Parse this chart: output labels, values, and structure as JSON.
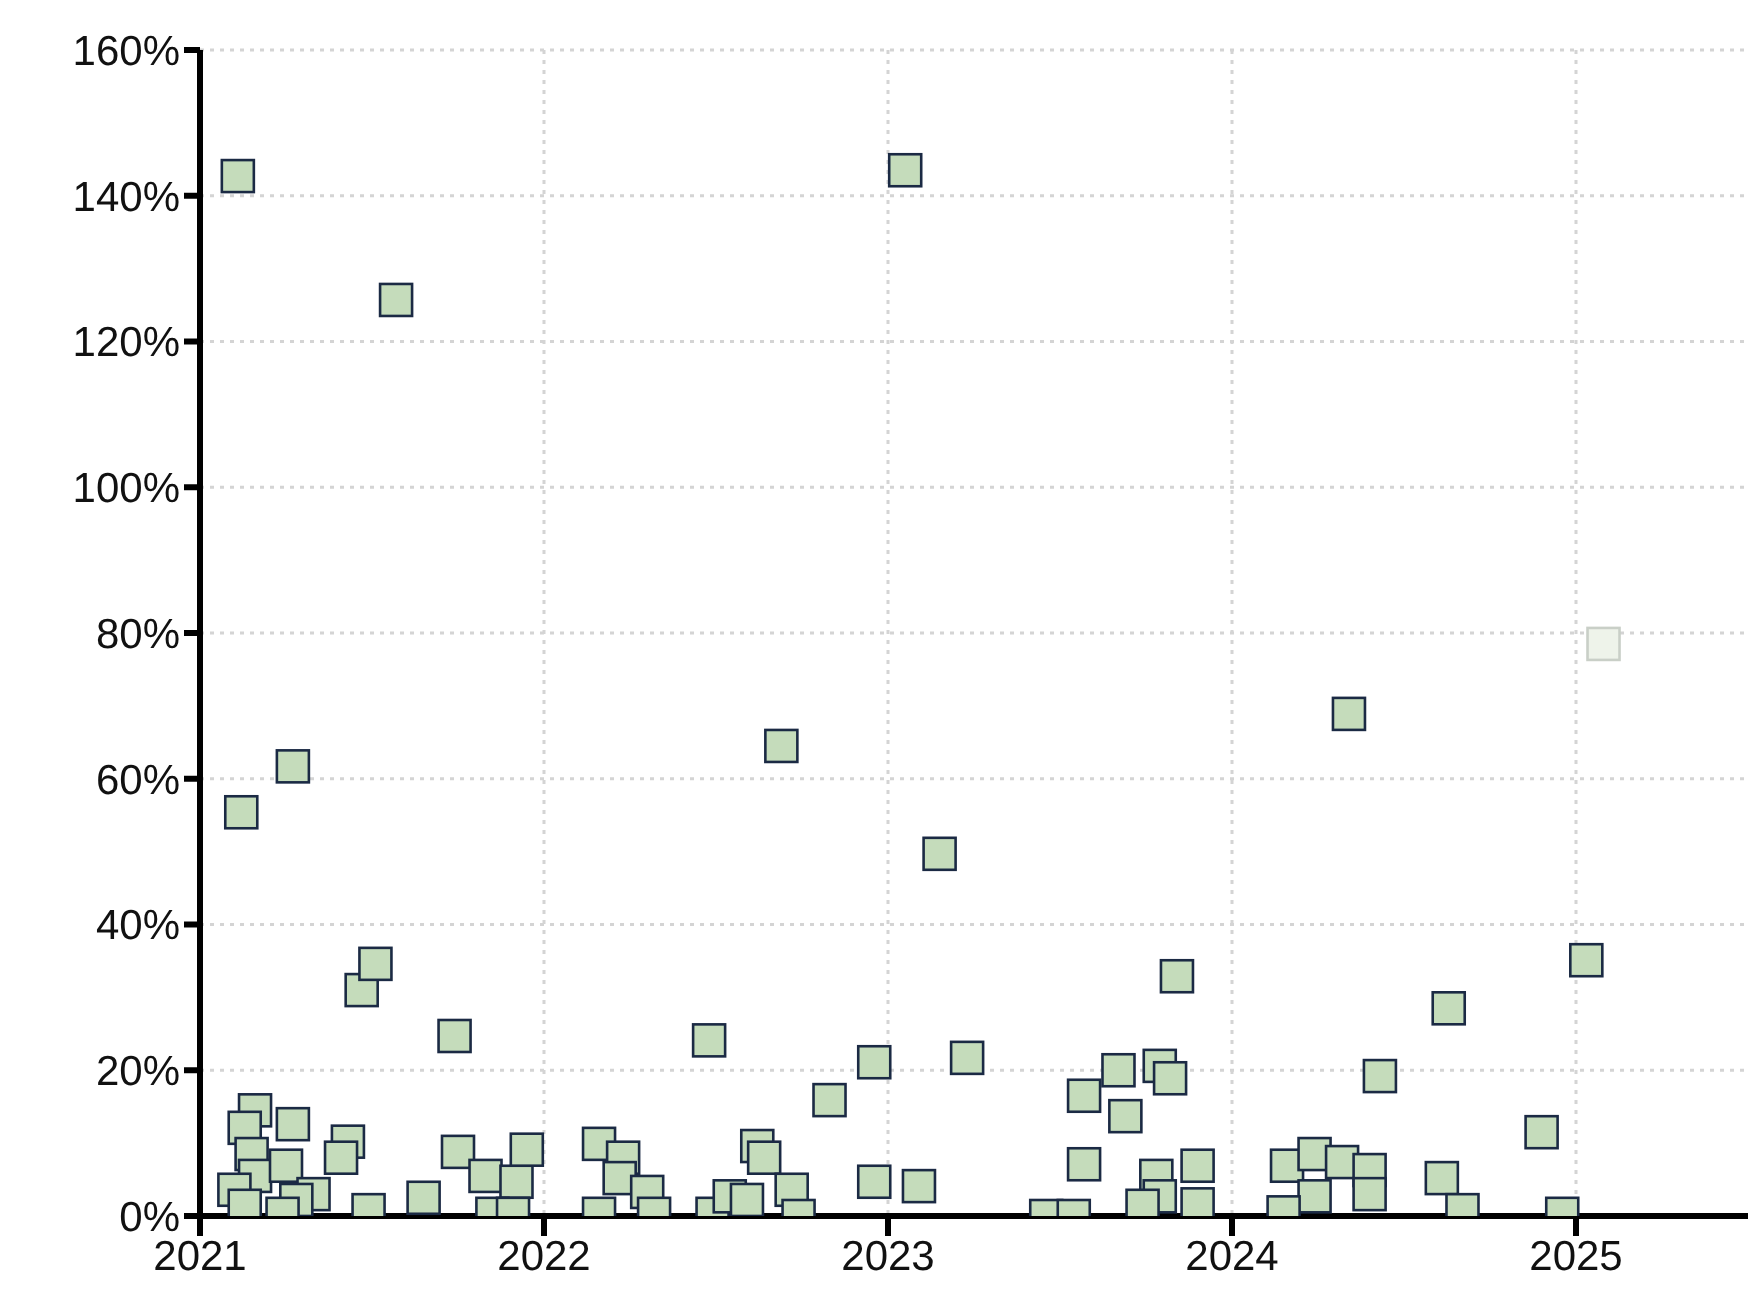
{
  "chart_data": {
    "type": "scatter",
    "marker": "square",
    "grid": true,
    "legend": false,
    "xlim": [
      2021,
      2025.5
    ],
    "xticks": [
      2021,
      2022,
      2023,
      2024,
      2025
    ],
    "ylim": [
      0,
      160
    ],
    "yticks": [
      {
        "value": 0,
        "label": "0%"
      },
      {
        "value": 20,
        "label": "20%"
      },
      {
        "value": 40,
        "label": "40%"
      },
      {
        "value": 60,
        "label": "60%"
      },
      {
        "value": 80,
        "label": "80%"
      },
      {
        "value": 100,
        "label": "100%"
      },
      {
        "value": 120,
        "label": "120%"
      },
      {
        "value": 140,
        "label": "140%"
      },
      {
        "value": 160,
        "label": "160%"
      }
    ],
    "series": [
      {
        "color": "#c5dcbb",
        "x": [
          2021.11,
          2023.05,
          2021.57,
          2022.69,
          2023.15,
          2024.34,
          2023.84,
          2021.12,
          2021.27,
          2021.47,
          2021.51,
          2021.74,
          2022.48,
          2021.16,
          2021.13,
          2021.27,
          2021.15,
          2021.43,
          2021.41,
          2021.16,
          2021.25,
          2021.1,
          2021.13,
          2021.33,
          2021.28,
          2021.24,
          2021.49,
          2021.75,
          2021.83,
          2021.65,
          2021.92,
          2021.95,
          2021.85,
          2021.91,
          2022.16,
          2022.23,
          2022.22,
          2022.3,
          2022.16,
          2022.32,
          2022.49,
          2022.54,
          2022.59,
          2022.62,
          2022.64,
          2022.72,
          2022.74,
          2022.96,
          2023.23,
          2022.83,
          2022.96,
          2023.09,
          2023.46,
          2023.54,
          2023.57,
          2023.67,
          2023.69,
          2023.79,
          2023.82,
          2023.57,
          2023.78,
          2023.79,
          2023.74,
          2023.9,
          2023.9,
          2024.16,
          2024.24,
          2024.32,
          2024.24,
          2024.15,
          2025.03,
          2024.63,
          2024.43,
          2024.9,
          2024.4,
          2024.4,
          2024.61,
          2024.67,
          2024.96
        ],
        "values": [
          142.7,
          143.5,
          125.7,
          64.5,
          49.7,
          68.9,
          32.9,
          55.4,
          61.7,
          31,
          34.6,
          24.7,
          24.1,
          14.5,
          12.1,
          12.6,
          8.5,
          10.2,
          8,
          5.5,
          6.9,
          3.6,
          1.4,
          3,
          2.2,
          0.3,
          0.8,
          8.8,
          5.5,
          2.5,
          4.7,
          9.1,
          0.3,
          0.3,
          9.9,
          8,
          5.2,
          3.3,
          0.3,
          0.3,
          0.3,
          2.7,
          2.2,
          9.6,
          8,
          3.6,
          0,
          21.1,
          21.7,
          15.9,
          4.7,
          4.1,
          0,
          0,
          16.5,
          20,
          13.7,
          20.6,
          18.9,
          7.1,
          5.5,
          2.7,
          1.4,
          6.9,
          1.6,
          6.9,
          8.5,
          7.4,
          2.7,
          0.5,
          35.1,
          28.5,
          19.2,
          11.5,
          6.3,
          3,
          5.2,
          0.8,
          0.3
        ]
      },
      {
        "color": "#eef3ea",
        "x": [
          2025.08
        ],
        "values": [
          78.5
        ]
      }
    ]
  }
}
